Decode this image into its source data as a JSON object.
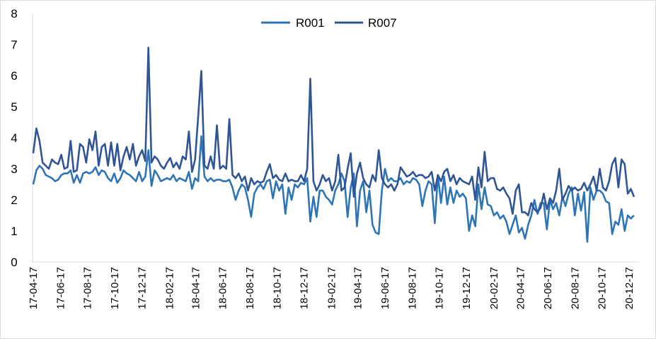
{
  "chart_data": {
    "type": "line",
    "title": "",
    "xlabel": "",
    "ylabel": "",
    "ylim": [
      0,
      8
    ],
    "yticks": [
      "0",
      "1",
      "2",
      "3",
      "4",
      "5",
      "6",
      "7",
      "8"
    ],
    "xlim": [
      "2017-04-17",
      "2021-01-08"
    ],
    "xtick_dates": [
      "2017-04-17",
      "2017-06-17",
      "2017-08-17",
      "2017-10-17",
      "2017-12-17",
      "2018-02-17",
      "2018-04-17",
      "2018-06-17",
      "2018-08-17",
      "2018-10-17",
      "2018-12-17",
      "2019-02-17",
      "2019-04-17",
      "2019-06-17",
      "2019-08-17",
      "2019-10-17",
      "2019-12-17",
      "2020-02-17",
      "2020-04-17",
      "2020-06-17",
      "2020-08-17",
      "2020-10-17",
      "2020-12-17"
    ],
    "xtick_labels": [
      "17-04-17",
      "17-06-17",
      "17-08-17",
      "17-10-17",
      "17-12-17",
      "18-02-17",
      "18-04-17",
      "18-06-17",
      "18-08-17",
      "18-10-17",
      "18-12-17",
      "19-02-17",
      "19-04-17",
      "19-06-17",
      "19-08-17",
      "19-10-17",
      "19-12-17",
      "20-02-17",
      "20-04-17",
      "20-06-17",
      "20-08-17",
      "20-10-17",
      "20-12-17"
    ],
    "grid": false,
    "legend": "top-center",
    "x": [
      "2017-04-17",
      "2017-04-24",
      "2017-05-01",
      "2017-05-08",
      "2017-05-15",
      "2017-05-22",
      "2017-05-29",
      "2017-06-05",
      "2017-06-12",
      "2017-06-19",
      "2017-06-26",
      "2017-07-03",
      "2017-07-10",
      "2017-07-17",
      "2017-07-24",
      "2017-07-31",
      "2017-08-07",
      "2017-08-14",
      "2017-08-21",
      "2017-08-28",
      "2017-09-04",
      "2017-09-11",
      "2017-09-18",
      "2017-09-25",
      "2017-10-02",
      "2017-10-09",
      "2017-10-16",
      "2017-10-23",
      "2017-10-30",
      "2017-11-06",
      "2017-11-13",
      "2017-11-20",
      "2017-11-27",
      "2017-12-04",
      "2017-12-11",
      "2017-12-18",
      "2017-12-25",
      "2018-01-01",
      "2018-01-08",
      "2018-01-15",
      "2018-01-22",
      "2018-01-29",
      "2018-02-05",
      "2018-02-12",
      "2018-02-19",
      "2018-02-26",
      "2018-03-05",
      "2018-03-12",
      "2018-03-19",
      "2018-03-26",
      "2018-04-02",
      "2018-04-09",
      "2018-04-16",
      "2018-04-23",
      "2018-04-30",
      "2018-05-07",
      "2018-05-14",
      "2018-05-21",
      "2018-05-28",
      "2018-06-04",
      "2018-06-11",
      "2018-06-18",
      "2018-06-25",
      "2018-07-02",
      "2018-07-09",
      "2018-07-16",
      "2018-07-23",
      "2018-07-30",
      "2018-08-06",
      "2018-08-13",
      "2018-08-20",
      "2018-08-27",
      "2018-09-03",
      "2018-09-10",
      "2018-09-17",
      "2018-09-24",
      "2018-10-01",
      "2018-10-08",
      "2018-10-15",
      "2018-10-22",
      "2018-10-29",
      "2018-11-05",
      "2018-11-12",
      "2018-11-19",
      "2018-11-26",
      "2018-12-03",
      "2018-12-10",
      "2018-12-17",
      "2018-12-24",
      "2018-12-31",
      "2019-01-07",
      "2019-01-14",
      "2019-01-21",
      "2019-01-28",
      "2019-02-04",
      "2019-02-11",
      "2019-02-18",
      "2019-02-25",
      "2019-03-04",
      "2019-03-11",
      "2019-03-18",
      "2019-03-25",
      "2019-04-01",
      "2019-04-08",
      "2019-04-15",
      "2019-04-22",
      "2019-04-29",
      "2019-05-06",
      "2019-05-13",
      "2019-05-20",
      "2019-05-27",
      "2019-06-03",
      "2019-06-10",
      "2019-06-17",
      "2019-06-24",
      "2019-07-01",
      "2019-07-08",
      "2019-07-15",
      "2019-07-22",
      "2019-07-29",
      "2019-08-05",
      "2019-08-12",
      "2019-08-19",
      "2019-08-26",
      "2019-09-02",
      "2019-09-09",
      "2019-09-16",
      "2019-09-23",
      "2019-09-30",
      "2019-10-07",
      "2019-10-14",
      "2019-10-21",
      "2019-10-28",
      "2019-11-04",
      "2019-11-11",
      "2019-11-18",
      "2019-11-25",
      "2019-12-02",
      "2019-12-09",
      "2019-12-16",
      "2019-12-23",
      "2019-12-30",
      "2020-01-06",
      "2020-01-13",
      "2020-01-20",
      "2020-01-27",
      "2020-02-03",
      "2020-02-10",
      "2020-02-17",
      "2020-02-24",
      "2020-03-02",
      "2020-03-09",
      "2020-03-16",
      "2020-03-23",
      "2020-03-30",
      "2020-04-06",
      "2020-04-13",
      "2020-04-20",
      "2020-04-27",
      "2020-05-04",
      "2020-05-11",
      "2020-05-18",
      "2020-05-25",
      "2020-06-01",
      "2020-06-08",
      "2020-06-15",
      "2020-06-22",
      "2020-06-29",
      "2020-07-06",
      "2020-07-13",
      "2020-07-20",
      "2020-07-27",
      "2020-08-03",
      "2020-08-10",
      "2020-08-17",
      "2020-08-24",
      "2020-08-31",
      "2020-09-07",
      "2020-09-14",
      "2020-09-21",
      "2020-09-28",
      "2020-10-05",
      "2020-10-12",
      "2020-10-19",
      "2020-10-26",
      "2020-11-02",
      "2020-11-09",
      "2020-11-16",
      "2020-11-23",
      "2020-11-30",
      "2020-12-07",
      "2020-12-14",
      "2020-12-21",
      "2020-12-28"
    ],
    "series": [
      {
        "name": "R001",
        "color": "#2E75B6",
        "values": [
          2.5,
          2.95,
          3.1,
          3.0,
          2.8,
          2.75,
          2.7,
          2.6,
          2.65,
          2.8,
          2.85,
          2.85,
          2.95,
          2.55,
          2.8,
          2.55,
          2.85,
          2.9,
          2.85,
          2.9,
          3.05,
          2.8,
          2.95,
          2.9,
          2.7,
          2.6,
          2.85,
          2.55,
          2.7,
          2.95,
          2.85,
          2.8,
          2.7,
          2.6,
          2.9,
          2.6,
          2.75,
          3.6,
          2.45,
          2.95,
          2.8,
          2.6,
          2.65,
          2.7,
          2.65,
          2.8,
          2.6,
          2.7,
          2.65,
          2.6,
          2.9,
          2.35,
          2.7,
          2.6,
          4.05,
          2.75,
          2.6,
          2.7,
          2.6,
          2.65,
          2.65,
          2.6,
          2.6,
          2.65,
          2.4,
          2.0,
          2.3,
          2.5,
          2.4,
          2.0,
          1.45,
          2.2,
          2.4,
          2.5,
          2.35,
          2.6,
          2.65,
          2.05,
          2.6,
          2.3,
          2.5,
          1.55,
          2.4,
          2.0,
          2.5,
          2.4,
          2.55,
          2.5,
          2.7,
          1.3,
          2.1,
          1.45,
          2.3,
          2.3,
          2.1,
          2.0,
          1.85,
          2.3,
          2.5,
          2.85,
          2.6,
          1.45,
          2.4,
          2.85,
          1.15,
          2.3,
          2.6,
          1.6,
          2.3,
          1.2,
          0.95,
          0.9,
          2.3,
          3.0,
          2.6,
          2.7,
          2.6,
          2.6,
          2.7,
          2.5,
          2.6,
          2.55,
          2.7,
          2.65,
          2.5,
          1.8,
          2.3,
          2.6,
          2.5,
          1.25,
          2.8,
          1.9,
          2.75,
          1.85,
          2.4,
          1.9,
          2.3,
          2.1,
          2.2,
          2.05,
          1.0,
          1.5,
          1.15,
          2.5,
          1.7,
          2.4,
          1.85,
          1.8,
          1.5,
          1.6,
          1.4,
          1.5,
          1.3,
          0.9,
          1.2,
          1.5,
          0.95,
          1.1,
          0.75,
          1.2,
          1.5,
          2.0,
          1.55,
          1.9,
          1.9,
          1.05,
          2.0,
          1.7,
          1.9,
          1.5,
          2.1,
          1.8,
          2.2,
          2.4,
          1.5,
          2.2,
          1.65,
          2.25,
          0.65,
          2.4,
          2.0,
          2.3,
          2.3,
          2.2,
          1.95,
          1.9,
          0.9,
          1.3,
          1.2,
          1.7,
          1.0,
          1.5,
          1.4,
          1.5
        ]
      },
      {
        "name": "R007",
        "color": "#2F5597",
        "values": [
          3.5,
          4.3,
          3.9,
          3.2,
          3.1,
          3.0,
          3.3,
          3.2,
          3.15,
          3.45,
          3.0,
          3.05,
          3.9,
          2.9,
          2.95,
          3.8,
          3.7,
          3.2,
          3.95,
          3.6,
          4.2,
          3.1,
          3.7,
          3.8,
          3.1,
          3.85,
          3.1,
          3.8,
          2.95,
          3.4,
          3.7,
          3.3,
          3.8,
          3.1,
          3.4,
          3.6,
          3.25,
          6.9,
          3.2,
          3.4,
          3.3,
          3.1,
          3.0,
          3.2,
          3.35,
          3.05,
          3.2,
          3.0,
          3.4,
          3.3,
          4.2,
          2.9,
          3.3,
          4.7,
          6.15,
          3.1,
          3.0,
          3.4,
          3.0,
          4.4,
          3.0,
          3.1,
          3.0,
          4.6,
          2.8,
          2.7,
          2.85,
          2.6,
          2.75,
          2.3,
          2.7,
          2.5,
          2.6,
          2.55,
          2.6,
          2.9,
          3.15,
          2.7,
          2.8,
          2.65,
          2.6,
          2.85,
          2.6,
          2.65,
          2.6,
          2.6,
          2.8,
          2.6,
          3.0,
          5.9,
          2.6,
          2.3,
          2.5,
          2.8,
          2.6,
          2.7,
          2.3,
          2.6,
          3.45,
          2.3,
          2.4,
          3.0,
          3.5,
          2.1,
          2.85,
          3.2,
          2.7,
          2.5,
          2.4,
          2.8,
          2.6,
          3.6,
          2.7,
          2.5,
          2.4,
          2.5,
          2.3,
          2.5,
          3.05,
          2.9,
          2.75,
          2.8,
          2.9,
          2.75,
          2.8,
          2.8,
          2.7,
          2.75,
          2.9,
          2.3,
          2.8,
          2.6,
          2.9,
          3.0,
          2.6,
          2.8,
          2.5,
          2.7,
          2.6,
          2.55,
          2.5,
          2.75,
          2.0,
          3.05,
          2.4,
          3.55,
          2.6,
          2.7,
          2.7,
          2.35,
          2.3,
          2.4,
          2.2,
          2.05,
          1.55,
          2.3,
          2.5,
          1.6,
          1.6,
          1.5,
          1.9,
          1.7,
          1.6,
          1.75,
          2.2,
          1.7,
          2.05,
          1.9,
          2.3,
          3.0,
          2.0,
          2.2,
          2.45,
          2.3,
          2.4,
          2.3,
          2.35,
          2.55,
          2.3,
          2.5,
          2.75,
          2.3,
          3.0,
          2.4,
          2.3,
          2.6,
          3.15,
          3.35,
          2.4,
          3.3,
          3.15,
          2.2,
          2.35,
          2.1
        ]
      }
    ]
  }
}
